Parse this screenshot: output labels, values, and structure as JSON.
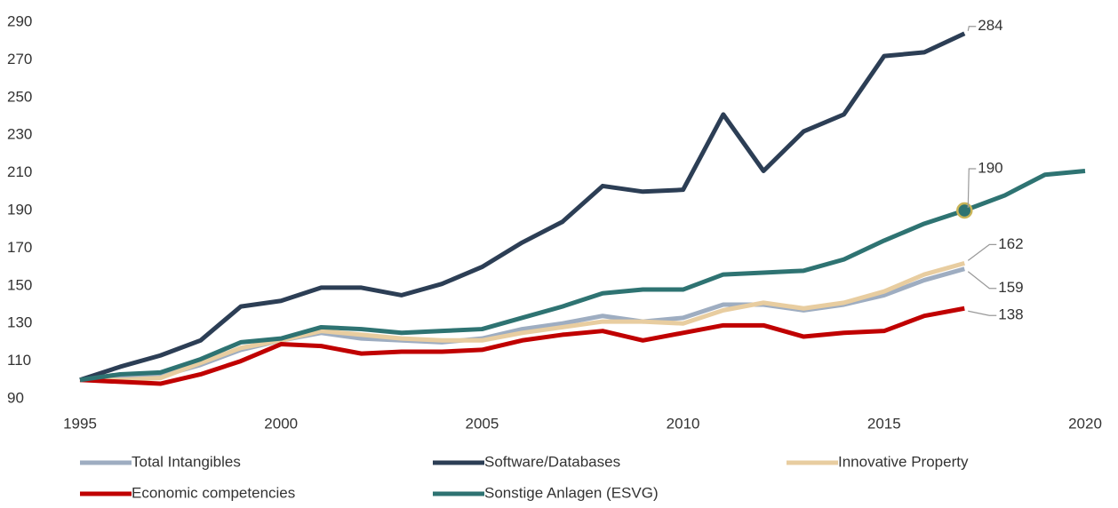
{
  "chart_data": {
    "type": "line",
    "x": [
      1995,
      1996,
      1997,
      1998,
      1999,
      2000,
      2001,
      2002,
      2003,
      2004,
      2005,
      2006,
      2007,
      2008,
      2009,
      2010,
      2011,
      2012,
      2013,
      2014,
      2015,
      2016,
      2017,
      2018,
      2019,
      2020
    ],
    "xlim": [
      1995,
      2020
    ],
    "xticks": [
      1995,
      2000,
      2005,
      2010,
      2015,
      2020
    ],
    "ylim": [
      90,
      290
    ],
    "yticks": [
      90,
      110,
      130,
      150,
      170,
      190,
      210,
      230,
      250,
      270,
      290
    ],
    "grid": false,
    "legend": "bottom",
    "series": [
      {
        "name": "Total Intangibles",
        "color": "#9eadc1",
        "values": [
          100,
          101,
          102,
          108,
          116,
          121,
          125,
          122,
          121,
          120,
          122,
          127,
          130,
          134,
          131,
          133,
          140,
          140,
          137,
          140,
          145,
          153,
          159,
          null,
          null,
          null
        ]
      },
      {
        "name": "Software/Databases",
        "color": "#2c3e55",
        "values": [
          100,
          107,
          113,
          121,
          139,
          142,
          149,
          149,
          145,
          151,
          160,
          173,
          184,
          203,
          200,
          201,
          241,
          211,
          232,
          241,
          272,
          274,
          284,
          null,
          null,
          null
        ]
      },
      {
        "name": "Innovative Property",
        "color": "#e8cda0",
        "values": [
          100,
          100,
          101,
          109,
          117,
          121,
          126,
          124,
          122,
          121,
          121,
          125,
          128,
          131,
          131,
          130,
          137,
          141,
          138,
          141,
          147,
          156,
          162,
          null,
          null,
          null
        ]
      },
      {
        "name": "Economic competencies",
        "color": "#c00000",
        "values": [
          100,
          99,
          98,
          103,
          110,
          119,
          118,
          114,
          115,
          115,
          116,
          121,
          124,
          126,
          121,
          125,
          129,
          129,
          123,
          125,
          126,
          134,
          138,
          null,
          null,
          null
        ]
      },
      {
        "name": "Sonstige Anlagen (ESVG)",
        "color": "#2e7372",
        "values": [
          100,
          103,
          104,
          111,
          120,
          122,
          128,
          127,
          125,
          126,
          127,
          133,
          139,
          146,
          148,
          148,
          156,
          157,
          158,
          164,
          174,
          183,
          190,
          198,
          209,
          211
        ]
      }
    ],
    "annotations": [
      {
        "text": "284",
        "x": 2017,
        "y": 284
      },
      {
        "text": "190",
        "x": 2017,
        "y": 190
      },
      {
        "text": "162",
        "x": 2017,
        "y": 162
      },
      {
        "text": "159",
        "x": 2017,
        "y": 159
      },
      {
        "text": "138",
        "x": 2017,
        "y": 138
      }
    ]
  }
}
